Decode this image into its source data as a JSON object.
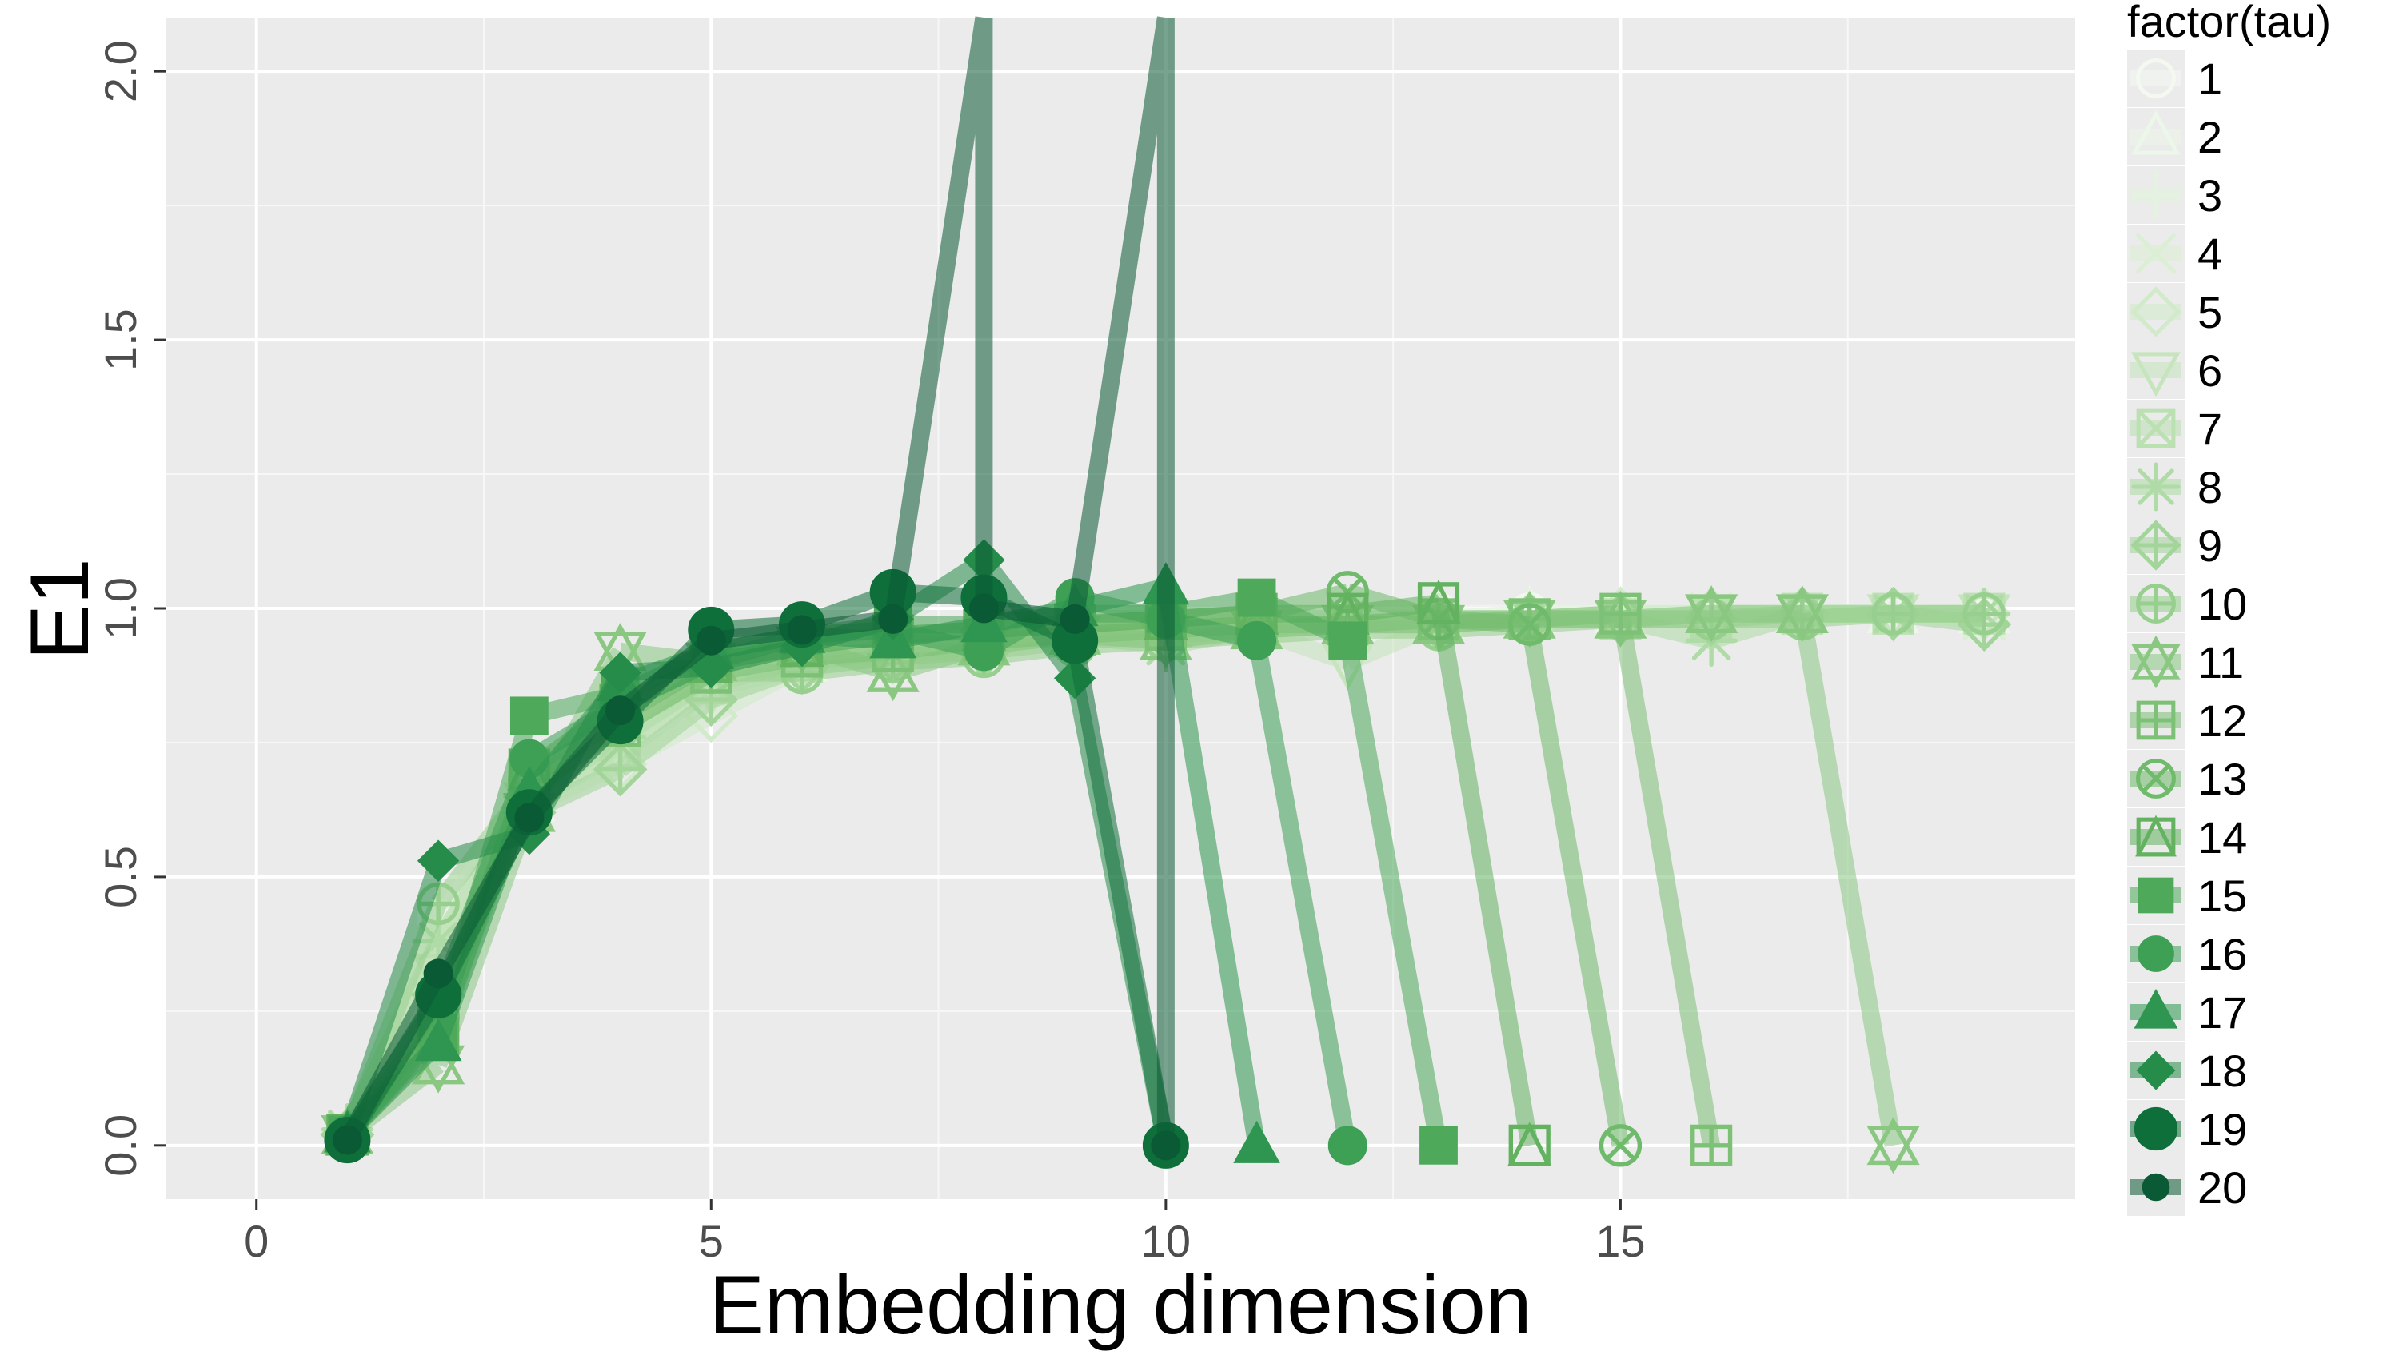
{
  "chart_data": {
    "type": "line",
    "title": "",
    "xlabel": "Embedding dimension",
    "ylabel": "E1",
    "xlim": [
      -1,
      20
    ],
    "ylim": [
      -0.1,
      2.1
    ],
    "x_ticks": [
      0,
      5,
      10,
      15
    ],
    "x_tick_labels": [
      "0",
      "5",
      "10",
      "15"
    ],
    "y_ticks": [
      0,
      0.5,
      1,
      1.5,
      2
    ],
    "y_tick_labels": [
      "0.0",
      "0.5",
      "1.0",
      "1.5",
      "2.0"
    ],
    "grid": true,
    "legend": {
      "title": "factor(tau)",
      "placement": "right"
    },
    "series": [
      {
        "name": "1",
        "color": "#f3f9f1",
        "shape": "circle-open",
        "x": [
          1,
          2,
          3,
          4,
          5,
          6,
          7,
          8,
          9,
          10,
          11,
          12,
          13,
          14,
          15,
          16,
          17,
          18,
          19
        ],
        "y": [
          0.02,
          0.42,
          0.66,
          0.77,
          0.88,
          0.91,
          0.93,
          0.95,
          0.96,
          0.97,
          0.98,
          0.98,
          0.99,
          0.99,
          0.99,
          0.99,
          0.99,
          0.99,
          0.99
        ]
      },
      {
        "name": "2",
        "color": "#ecf6e9",
        "shape": "triangle-open",
        "x": [
          1,
          2,
          3,
          4,
          5,
          6,
          7,
          8,
          9,
          10,
          11,
          12,
          13,
          14,
          15,
          16,
          17,
          18,
          19
        ],
        "y": [
          0.02,
          0.35,
          0.64,
          0.75,
          0.86,
          0.9,
          0.92,
          0.94,
          0.96,
          0.97,
          0.97,
          0.98,
          0.98,
          0.99,
          0.99,
          0.99,
          0.99,
          0.99,
          0.99
        ]
      },
      {
        "name": "3",
        "color": "#e4f3df",
        "shape": "plus",
        "x": [
          1,
          2,
          3,
          4,
          5,
          6,
          7,
          8,
          9,
          10,
          11,
          12,
          13,
          14,
          15,
          16,
          17,
          18,
          19
        ],
        "y": [
          0.03,
          0.4,
          0.65,
          0.76,
          0.87,
          0.91,
          0.93,
          0.95,
          0.96,
          0.97,
          0.98,
          0.98,
          0.98,
          0.99,
          0.99,
          0.99,
          0.99,
          0.99,
          0.98
        ]
      },
      {
        "name": "4",
        "color": "#dbefd4",
        "shape": "cross",
        "x": [
          1,
          2,
          3,
          4,
          5,
          6,
          7,
          8,
          9,
          10,
          11,
          12,
          13,
          14,
          15,
          16,
          17,
          18,
          19
        ],
        "y": [
          0.02,
          0.37,
          0.66,
          0.74,
          0.86,
          0.9,
          0.92,
          0.94,
          0.95,
          0.96,
          0.97,
          0.98,
          0.98,
          0.98,
          0.99,
          0.99,
          0.99,
          0.99,
          0.98
        ]
      },
      {
        "name": "5",
        "color": "#d1eaca",
        "shape": "diamond-open",
        "x": [
          1,
          2,
          3,
          4,
          5,
          6,
          7,
          8,
          9,
          10,
          11,
          12,
          13,
          14,
          15,
          16,
          17,
          18,
          19
        ],
        "y": [
          0.02,
          0.3,
          0.63,
          0.71,
          0.8,
          0.89,
          0.91,
          0.93,
          0.95,
          0.96,
          0.97,
          0.97,
          0.98,
          0.98,
          0.99,
          0.99,
          0.99,
          0.99,
          0.99
        ]
      },
      {
        "name": "6",
        "color": "#c6e5bd",
        "shape": "triangle-down-open",
        "x": [
          1,
          2,
          3,
          4,
          5,
          6,
          7,
          8,
          9,
          10,
          11,
          12,
          13,
          14,
          15,
          16,
          17,
          18,
          19
        ],
        "y": [
          0.02,
          0.32,
          0.64,
          0.73,
          0.85,
          0.89,
          0.91,
          0.93,
          0.95,
          0.95,
          0.96,
          0.9,
          0.97,
          0.98,
          0.98,
          0.99,
          0.99,
          0.99,
          0.99
        ]
      },
      {
        "name": "7",
        "color": "#bbe0b2",
        "shape": "square-cross",
        "x": [
          1,
          2,
          3,
          4,
          5,
          6,
          7,
          8,
          9,
          10,
          11,
          12,
          13,
          14,
          15,
          16,
          17,
          18,
          19
        ],
        "y": [
          0.02,
          0.25,
          0.64,
          0.74,
          0.86,
          0.9,
          0.92,
          0.94,
          0.95,
          0.96,
          0.97,
          0.97,
          0.98,
          0.98,
          0.98,
          0.98,
          0.99,
          0.99,
          0.99
        ]
      },
      {
        "name": "8",
        "color": "#afdba6",
        "shape": "asterisk",
        "x": [
          1,
          2,
          3,
          4,
          5,
          6,
          7,
          8,
          9,
          10,
          11,
          12,
          13,
          14,
          15,
          16,
          17,
          18,
          19
        ],
        "y": [
          0.03,
          0.38,
          0.65,
          0.76,
          0.87,
          0.9,
          0.92,
          0.94,
          0.95,
          0.93,
          0.96,
          0.97,
          0.97,
          0.98,
          0.98,
          0.94,
          0.99,
          0.99,
          0.99
        ]
      },
      {
        "name": "9",
        "color": "#a3d59a",
        "shape": "diamond-plus",
        "x": [
          1,
          2,
          3,
          4,
          5,
          6,
          7,
          8,
          9,
          10,
          11,
          12,
          13,
          14,
          15,
          16,
          17,
          18,
          19
        ],
        "y": [
          0.02,
          0.28,
          0.62,
          0.7,
          0.83,
          0.89,
          0.91,
          0.92,
          0.94,
          0.95,
          0.96,
          0.97,
          0.97,
          0.98,
          0.98,
          0.98,
          0.99,
          0.99,
          0.97
        ]
      },
      {
        "name": "10",
        "color": "#97cf8e",
        "shape": "circle-plus",
        "x": [
          1,
          2,
          3,
          4,
          5,
          6,
          7,
          8,
          9,
          10,
          11,
          12,
          13,
          14,
          15,
          16,
          17,
          18,
          19
        ],
        "y": [
          0.02,
          0.45,
          0.67,
          0.78,
          0.88,
          0.88,
          0.9,
          0.91,
          0.93,
          0.94,
          0.95,
          0.96,
          0.96,
          0.97,
          0.98,
          0.98,
          0.98,
          0.99,
          0.99
        ]
      },
      {
        "name": "11",
        "color": "#8ac882",
        "shape": "star-of-david",
        "x": [
          1,
          2,
          3,
          4,
          5,
          6,
          7,
          8,
          9,
          10,
          11,
          12,
          13,
          14,
          15,
          16,
          17,
          18
        ],
        "y": [
          0.02,
          0.15,
          0.62,
          0.92,
          0.9,
          0.93,
          0.88,
          0.93,
          0.95,
          0.94,
          0.96,
          0.97,
          0.97,
          0.98,
          0.98,
          0.99,
          0.99,
          0.0
        ]
      },
      {
        "name": "12",
        "color": "#7dc176",
        "shape": "square-plus",
        "x": [
          1,
          2,
          3,
          4,
          5,
          6,
          7,
          8,
          9,
          10,
          11,
          12,
          13,
          14,
          15,
          16
        ],
        "y": [
          0.02,
          0.22,
          0.66,
          0.78,
          0.88,
          0.91,
          0.92,
          0.94,
          0.95,
          0.96,
          0.97,
          0.97,
          0.98,
          0.98,
          0.99,
          0.0
        ]
      },
      {
        "name": "13",
        "color": "#6fba6b",
        "shape": "circle-cross",
        "x": [
          1,
          2,
          3,
          4,
          5,
          6,
          7,
          8,
          9,
          10,
          11,
          12,
          13,
          14,
          15
        ],
        "y": [
          0.02,
          0.24,
          0.68,
          0.8,
          0.9,
          0.93,
          0.95,
          0.96,
          0.97,
          0.98,
          0.99,
          1.03,
          0.98,
          0.97,
          0.0
        ]
      },
      {
        "name": "14",
        "color": "#62b260",
        "shape": "square-triangle",
        "x": [
          1,
          2,
          3,
          4,
          5,
          6,
          7,
          8,
          9,
          10,
          11,
          12,
          13,
          14
        ],
        "y": [
          0.02,
          0.2,
          0.7,
          0.82,
          0.9,
          0.93,
          0.95,
          0.96,
          0.97,
          0.98,
          0.99,
          0.99,
          1.01,
          0.0
        ]
      },
      {
        "name": "15",
        "color": "#4ea95a",
        "shape": "square",
        "x": [
          1,
          2,
          3,
          4,
          5,
          6,
          7,
          8,
          9,
          10,
          11,
          12,
          13
        ],
        "y": [
          0.02,
          0.21,
          0.8,
          0.84,
          0.92,
          0.95,
          0.97,
          0.97,
          0.99,
          0.99,
          1.02,
          0.94,
          0.0
        ]
      },
      {
        "name": "16",
        "color": "#3ea055",
        "shape": "circle",
        "x": [
          1,
          2,
          3,
          4,
          5,
          6,
          7,
          8,
          9,
          10,
          11,
          12
        ],
        "y": [
          0.02,
          0.27,
          0.72,
          0.82,
          0.9,
          0.95,
          0.96,
          0.92,
          1.02,
          0.98,
          0.94,
          0.0
        ]
      },
      {
        "name": "17",
        "color": "#2e9650",
        "shape": "triangle",
        "x": [
          1,
          2,
          3,
          4,
          5,
          6,
          7,
          8,
          9,
          10,
          11
        ],
        "y": [
          0.02,
          0.19,
          0.66,
          0.86,
          0.92,
          0.95,
          0.94,
          0.97,
          1.0,
          1.04,
          0.0
        ]
      },
      {
        "name": "18",
        "color": "#268c4a",
        "shape": "diamond",
        "x": [
          1,
          2,
          3,
          4,
          5,
          6,
          7,
          8,
          9,
          10
        ],
        "y": [
          0.02,
          0.53,
          0.58,
          0.88,
          0.89,
          0.93,
          0.98,
          1.09,
          0.87,
          0.0
        ]
      },
      {
        "name": "19",
        "color": "#0e6f3a",
        "shape": "circle-large",
        "x": [
          1,
          2,
          3,
          4,
          5,
          6,
          7,
          8,
          9,
          10
        ],
        "y": [
          0.01,
          0.28,
          0.62,
          0.79,
          0.96,
          0.97,
          1.03,
          1.02,
          0.94,
          0.0
        ]
      },
      {
        "name": "20",
        "color": "#0a5a35",
        "shape": "line-dot",
        "x": [
          1,
          2,
          3,
          4,
          5,
          6,
          7,
          8,
          8,
          9,
          10,
          10
        ],
        "y": [
          0.01,
          0.32,
          0.61,
          0.81,
          0.94,
          0.96,
          0.98,
          2.1,
          1.0,
          0.98,
          2.1,
          0.0
        ]
      }
    ]
  }
}
